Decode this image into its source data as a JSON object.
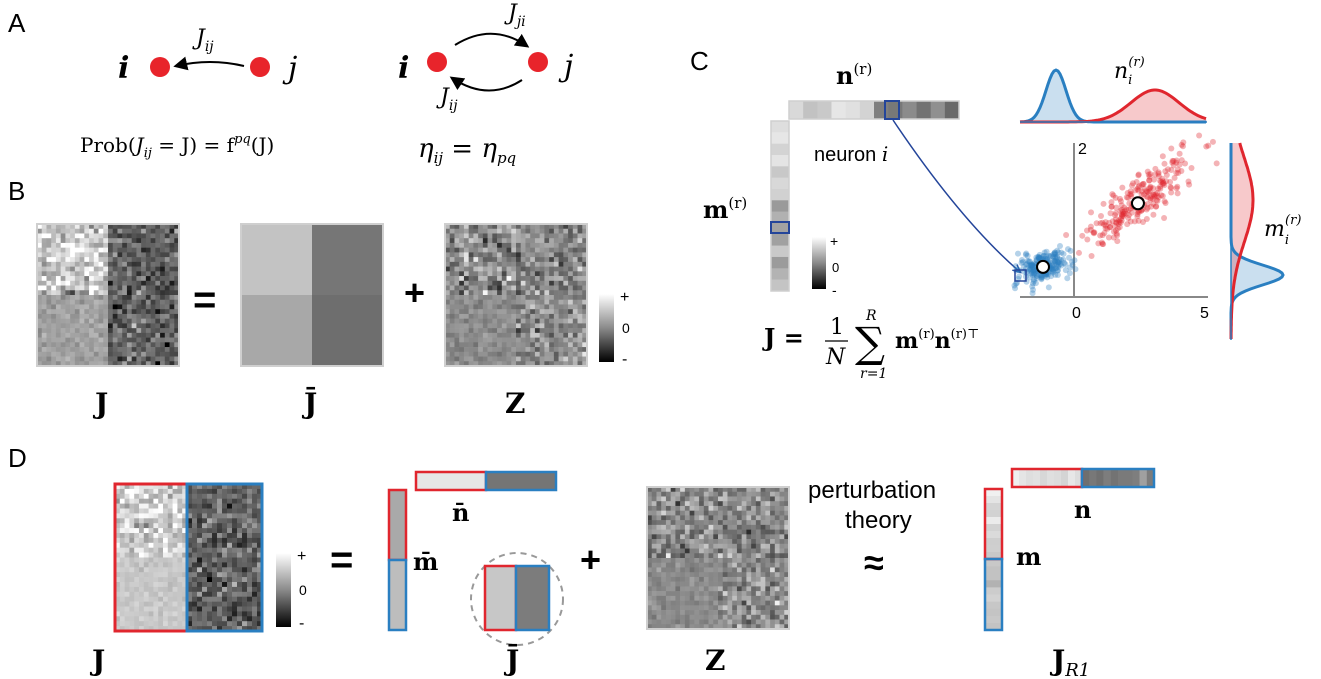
{
  "colors": {
    "node_red": "#e8242b",
    "pop_blue": "#2a7fc1",
    "pop_red": "#e0262e",
    "arrow_navy": "#24459a",
    "frame_gray": "#cfcfcf",
    "axis_gray": "#888888"
  },
  "panel_labels": {
    "a": "A",
    "b": "B",
    "c": "C",
    "d": "D"
  },
  "panel_a": {
    "node_i": "i",
    "node_j": "j",
    "edge_ij": "J",
    "edge_ij_sub": "ij",
    "edge_ji": "J",
    "edge_ji_sub": "ji",
    "prob_text": "Prob(",
    "prob_j": "J",
    "prob_j_sub": "ij",
    "prob_eq": " = J) = f",
    "prob_sup": "pq",
    "prob_end": "(J)",
    "eta_lhs": "η",
    "eta_lhs_sub": "ij",
    "eta_eq": " = η",
    "eta_rhs_sub": "pq"
  },
  "panel_b": {
    "op_eq": "=",
    "op_plus": "+",
    "label_j": "J",
    "label_jbar": "J̄",
    "label_z": "Z",
    "colorbar_plus": "+",
    "colorbar_zero": "0",
    "colorbar_minus": "-"
  },
  "panel_c": {
    "n_vec": "n",
    "n_sup": "(r)",
    "m_vec": "m",
    "m_sup": "(r)",
    "neuron_label": "neuron ",
    "neuron_i": "i",
    "colorbar_plus": "+",
    "colorbar_zero": "0",
    "colorbar_minus": "-",
    "formula_lhs": "J = ",
    "formula_frac_num": "1",
    "formula_frac_den": "N",
    "formula_sum_top": "R",
    "formula_sum_bottom": "r=1",
    "formula_term": "m",
    "formula_term_sup": "(r)",
    "formula_term2": "n",
    "formula_term2_sup": "(r)⊤",
    "marg_top_label": "n",
    "marg_top_sub": "i",
    "marg_top_sup": "(r)",
    "marg_right_label": "m",
    "marg_right_sub": "i",
    "marg_right_sup": "(r)",
    "scatter": {
      "x_ticks": [
        "0",
        "5"
      ],
      "y_ticks": [
        "2"
      ],
      "xlim": [
        -1.5,
        5.0
      ],
      "ylim": [
        -0.3,
        2.0
      ],
      "blue_center": [
        -0.7,
        0.15
      ],
      "red_center": [
        2.6,
        1.1
      ]
    }
  },
  "panel_d": {
    "op_eq": "=",
    "op_plus": "+",
    "op_approx": "≈",
    "pert_line1": "perturbation",
    "pert_line2": "theory",
    "colorbar_plus": "+",
    "colorbar_zero": "0",
    "colorbar_minus": "-",
    "label_j": "J",
    "label_nbar": "n̄",
    "label_mbar": "m̄",
    "label_jbar": "J̄",
    "label_z": "Z",
    "label_n": "n",
    "label_m": "m",
    "label_jr1": "J",
    "label_jr1_sub": "R1"
  }
}
